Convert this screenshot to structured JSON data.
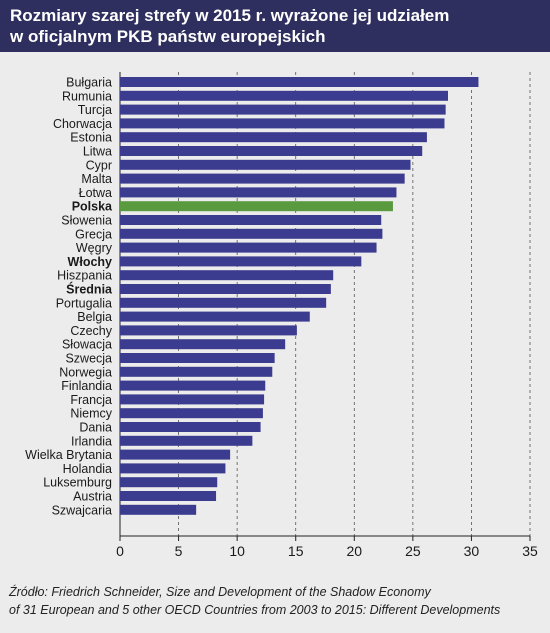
{
  "header": {
    "title_line1": "Rozmiary szarej strefy w 2015 r. wyrażone jej udziałem",
    "title_line2": "w oficjalnym PKB państw europejskich"
  },
  "source": {
    "line1": "Źródło: Friedrich Schneider, Size and Development of the Shadow Economy",
    "line2": "of 31 European and 5 other OECD Countries from 2003 to 2015: Different Developments"
  },
  "colors": {
    "header_bg": "#2f2f5f",
    "background": "#ececec",
    "bar": "#3b3b8f",
    "bar_highlight": "#5a9a3f"
  },
  "chart_data": {
    "type": "bar",
    "orientation": "horizontal",
    "categories": [
      "Bułgaria",
      "Rumunia",
      "Turcja",
      "Chorwacja",
      "Estonia",
      "Litwa",
      "Cypr",
      "Malta",
      "Łotwa",
      "Polska",
      "Słowenia",
      "Grecja",
      "Węgry",
      "Włochy",
      "Hiszpania",
      "Średnia",
      "Portugalia",
      "Belgia",
      "Czechy",
      "Słowacja",
      "Szwecja",
      "Norwegia",
      "Finlandia",
      "Francja",
      "Niemcy",
      "Dania",
      "Irlandia",
      "Wielka Brytania",
      "Holandia",
      "Luksemburg",
      "Austria",
      "Szwajcaria"
    ],
    "values": [
      30.6,
      28.0,
      27.8,
      27.7,
      26.2,
      25.8,
      24.8,
      24.3,
      23.6,
      23.3,
      22.3,
      22.4,
      21.9,
      20.6,
      18.2,
      18.0,
      17.6,
      16.2,
      15.1,
      14.1,
      13.2,
      13.0,
      12.4,
      12.3,
      12.2,
      12.0,
      11.3,
      9.4,
      9.0,
      8.3,
      8.2,
      6.5
    ],
    "highlight": [
      "Polska"
    ],
    "bold_labels": [
      "Polska",
      "Włochy",
      "Średnia"
    ],
    "xlim": [
      0,
      35
    ],
    "xticks": [
      0,
      5,
      10,
      15,
      20,
      25,
      30,
      35
    ],
    "grid": "vertical dashed",
    "title": "Rozmiary szarej strefy w 2015 r. wyrażone jej udziałem w oficjalnym PKB państw europejskich",
    "xlabel": "",
    "ylabel": ""
  }
}
